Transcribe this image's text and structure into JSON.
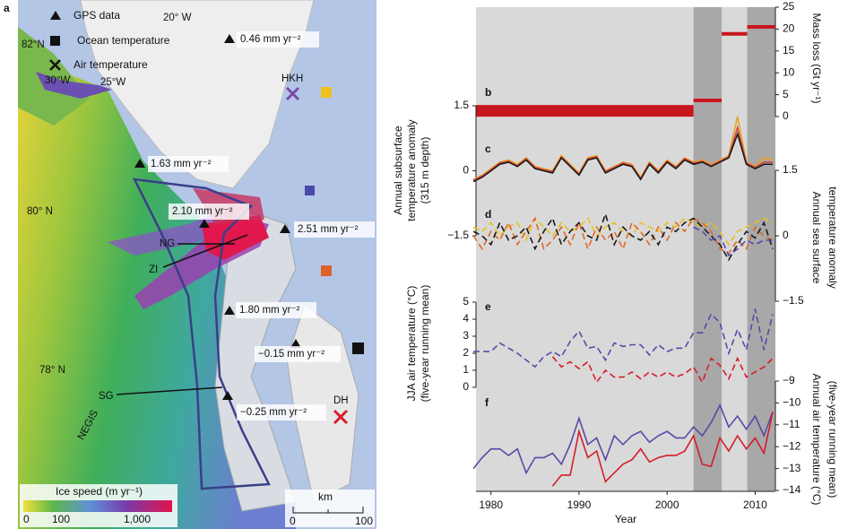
{
  "map": {
    "panel_label": "a",
    "legend": [
      "GPS data",
      "Ocean temperature",
      "Air temperature"
    ],
    "labels": [
      "82°N",
      "30°W",
      "25°W",
      "20° W",
      "0.46 mm yr⁻²",
      "HKH",
      "1.63 mm yr⁻²",
      "80° N",
      "2.10 mm yr⁻²",
      "2.51 mm yr⁻²",
      "NG",
      "ZI",
      "1.80 mm yr⁻²",
      "−0.15 mm yr⁻²",
      "78° N",
      "SG",
      "−0.25 mm yr⁻²",
      "NEGIS",
      "DH"
    ],
    "colorbar": {
      "title": "Ice speed (m yr⁻¹)",
      "ticks": [
        "0",
        "100",
        "1,000"
      ]
    },
    "scale_bar": {
      "unit": "km",
      "ticks": [
        "0",
        "100"
      ]
    }
  },
  "chart_data": [
    {
      "type": "segment",
      "label": "b",
      "ylabel": [
        "Mass loss (Gt yr⁻¹)"
      ],
      "y_axis_side": "right",
      "ylim": [
        0,
        25
      ],
      "yticks": [
        0,
        5,
        10,
        15,
        20,
        25
      ],
      "color": "#c8161e",
      "segments": [
        {
          "x": [
            1978.3,
            2003.0
          ],
          "value": 1.3
        },
        {
          "x": [
            2003.0,
            2006.2
          ],
          "value": 3.7
        },
        {
          "x": [
            2006.2,
            2009.1
          ],
          "value": 18.9
        },
        {
          "x": [
            2009.1,
            2012.3
          ],
          "value": 20.5
        }
      ]
    },
    {
      "type": "line",
      "label": "c",
      "ylabel": [
        "Annual subsurface",
        "temperature anomaly",
        "(315 m depth)"
      ],
      "y_axis_side": "left",
      "ylim": [
        -1.5,
        1.5
      ],
      "yticks": [
        1.5,
        0,
        {
          "value": -1.5,
          "label": "−1.5"
        }
      ],
      "dashed": false,
      "x": [
        1978,
        1979,
        1980,
        1981,
        1982,
        1983,
        1984,
        1985,
        1986,
        1987,
        1988,
        1989,
        1990,
        1991,
        1992,
        1993,
        1994,
        1995,
        1996,
        1997,
        1998,
        1999,
        2000,
        2001,
        2002,
        2003,
        2004,
        2005,
        2006,
        2007,
        2008,
        2009,
        2010,
        2011,
        2012
      ],
      "series": [
        {
          "color": "#e8a22a",
          "values": [
            -0.2,
            -0.1,
            0.05,
            0.2,
            0.25,
            0.15,
            0.3,
            0.1,
            0.05,
            0.0,
            0.35,
            0.15,
            -0.05,
            0.3,
            0.35,
            0.0,
            0.1,
            0.2,
            0.15,
            -0.15,
            0.2,
            0.0,
            0.25,
            0.1,
            0.3,
            0.2,
            0.25,
            0.15,
            0.25,
            0.35,
            1.25,
            0.2,
            0.1,
            0.3,
            0.25
          ]
        },
        {
          "color": "#d2453a",
          "values": [
            -0.22,
            -0.12,
            0.02,
            0.18,
            0.22,
            0.12,
            0.28,
            0.08,
            0.02,
            -0.02,
            0.32,
            0.12,
            -0.08,
            0.28,
            0.32,
            -0.02,
            0.08,
            0.18,
            0.12,
            -0.18,
            0.18,
            -0.02,
            0.22,
            0.08,
            0.28,
            0.18,
            0.22,
            0.12,
            0.22,
            0.32,
            1.0,
            0.18,
            0.08,
            0.2,
            0.2
          ]
        },
        {
          "color": "#1a1a1a",
          "values": [
            -0.25,
            -0.15,
            0.0,
            0.15,
            0.2,
            0.1,
            0.25,
            0.05,
            0.0,
            -0.05,
            0.3,
            0.1,
            -0.1,
            0.25,
            0.3,
            -0.05,
            0.05,
            0.15,
            0.1,
            -0.2,
            0.15,
            -0.05,
            0.2,
            0.05,
            0.25,
            0.15,
            0.2,
            0.1,
            0.2,
            0.3,
            0.85,
            0.15,
            0.05,
            0.15,
            0.15
          ]
        }
      ]
    },
    {
      "type": "line",
      "label": "d",
      "ylabel": [
        "Annual sea surface",
        "temperature anomaly"
      ],
      "y_axis_side": "right",
      "ylim": [
        -1.5,
        1.5
      ],
      "yticks": [
        1.5,
        0,
        {
          "value": -1.5,
          "label": "−1.5"
        }
      ],
      "dashed": true,
      "x": [
        1978,
        1979,
        1980,
        1981,
        1982,
        1983,
        1984,
        1985,
        1986,
        1987,
        1988,
        1989,
        1990,
        1991,
        1992,
        1993,
        1994,
        1995,
        1996,
        1997,
        1998,
        1999,
        2000,
        2001,
        2002,
        2003,
        2004,
        2005,
        2006,
        2007,
        2008,
        2009,
        2010,
        2011,
        2012
      ],
      "series": [
        {
          "color": "#e8c020",
          "values": [
            0.2,
            0.1,
            0.3,
            0.0,
            0.2,
            0.3,
            -0.1,
            0.4,
            0.2,
            0.0,
            0.3,
            0.1,
            0.2,
            0.4,
            0.0,
            0.2,
            0.3,
            0.1,
            0.0,
            0.3,
            0.2,
            0.1,
            0.3,
            0.2,
            0.4,
            0.3,
            0.2,
            0.3,
            0.1,
            -0.2,
            0.1,
            0.2,
            0.3,
            0.4,
            0.3
          ]
        },
        {
          "color": "#e06a2a",
          "values": [
            0.0,
            -0.3,
            0.1,
            -0.1,
            0.3,
            -0.2,
            0.1,
            0.4,
            -0.3,
            -0.1,
            0.2,
            -0.2,
            0.3,
            -0.3,
            0.2,
            -0.1,
            0.1,
            -0.3,
            0.3,
            0.1,
            -0.2,
            0.2,
            -0.1,
            0.3,
            0.1,
            0.4,
            0.3,
            0.1,
            -0.3,
            -0.4,
            -0.1,
            -0.3,
            0.2,
            0.0,
            -0.1
          ]
        },
        {
          "color": "#1a1a1a",
          "values": [
            0.1,
            0.0,
            -0.2,
            0.3,
            -0.1,
            0.0,
            0.2,
            -0.3,
            0.1,
            0.4,
            -0.2,
            0.1,
            0.3,
            0.0,
            -0.1,
            0.5,
            -0.2,
            0.2,
            0.0,
            -0.1,
            0.1,
            -0.2,
            0.2,
            0.1,
            0.3,
            0.4,
            0.2,
            0.0,
            -0.2,
            -0.55,
            -0.2,
            0.1,
            -0.05,
            0.3,
            -0.3
          ]
        },
        {
          "color": "#5a48a8",
          "values": [
            null,
            null,
            null,
            null,
            null,
            null,
            null,
            null,
            null,
            null,
            null,
            null,
            null,
            null,
            null,
            null,
            null,
            null,
            null,
            null,
            null,
            null,
            null,
            null,
            null,
            0.2,
            0.1,
            -0.1,
            0.0,
            -0.45,
            -0.3,
            -0.1,
            -0.2,
            -0.1,
            -0.1
          ]
        }
      ]
    },
    {
      "type": "line",
      "label": "e",
      "ylabel": [
        "JJA air temperature (°C)",
        "(five-year running mean)"
      ],
      "y_axis_side": "left",
      "ylim": [
        0,
        5
      ],
      "yticks": [
        0,
        1,
        2,
        3,
        4,
        5
      ],
      "dashed": true,
      "x": [
        1978,
        1979,
        1980,
        1981,
        1982,
        1983,
        1984,
        1985,
        1986,
        1987,
        1988,
        1989,
        1990,
        1991,
        1992,
        1993,
        1994,
        1995,
        1996,
        1997,
        1998,
        1999,
        2000,
        2001,
        2002,
        2003,
        2004,
        2005,
        2006,
        2007,
        2008,
        2009,
        2010,
        2011,
        2012
      ],
      "series": [
        {
          "color": "#5a48a8",
          "values": [
            2.1,
            2.1,
            2.1,
            2.6,
            2.3,
            2.0,
            1.6,
            1.2,
            1.8,
            2.1,
            1.8,
            2.7,
            3.3,
            2.3,
            2.4,
            1.6,
            2.6,
            2.4,
            2.5,
            2.5,
            1.9,
            2.5,
            2.1,
            2.3,
            2.3,
            3.2,
            3.2,
            4.3,
            3.8,
            2.0,
            3.4,
            2.2,
            4.6,
            2.2,
            4.3
          ]
        },
        {
          "color": "#d41e2a",
          "values": [
            null,
            null,
            null,
            null,
            null,
            null,
            null,
            null,
            null,
            1.8,
            1.2,
            1.5,
            1.1,
            1.5,
            0.3,
            1.0,
            0.6,
            0.6,
            0.9,
            0.5,
            0.9,
            0.6,
            0.9,
            0.6,
            0.8,
            1.2,
            0.3,
            1.7,
            1.3,
            0.5,
            1.7,
            0.6,
            0.9,
            1.2,
            1.7
          ]
        }
      ]
    },
    {
      "type": "line",
      "label": "f",
      "ylabel": [
        "Annual air temperature (°C)",
        "(five-year running mean)"
      ],
      "y_axis_side": "right",
      "ylim": [
        -14,
        -9
      ],
      "yticks": [
        {
          "value": -9,
          "label": "−9"
        },
        {
          "value": -10,
          "label": "−10"
        },
        {
          "value": -11,
          "label": "−11"
        },
        {
          "value": -12,
          "label": "−12"
        },
        {
          "value": -13,
          "label": "−13"
        },
        {
          "value": -14,
          "label": "−14"
        }
      ],
      "dashed": false,
      "xlabel": "Year",
      "xlim": [
        1978.3,
        2012.3
      ],
      "xticks": [
        1980,
        1990,
        2000,
        2010
      ],
      "shaded_periods": [
        [
          2003.0,
          2006.2
        ],
        [
          2009.1,
          2012.3
        ]
      ],
      "x": [
        1978,
        1979,
        1980,
        1981,
        1982,
        1983,
        1984,
        1985,
        1986,
        1987,
        1988,
        1989,
        1990,
        1991,
        1992,
        1993,
        1994,
        1995,
        1996,
        1997,
        1998,
        1999,
        2000,
        2001,
        2002,
        2003,
        2004,
        2005,
        2006,
        2007,
        2008,
        2009,
        2010,
        2011,
        2012
      ],
      "series": [
        {
          "color": "#5a48a8",
          "values": [
            -13,
            -12.5,
            -12.1,
            -12.1,
            -12.4,
            -12.1,
            -13.2,
            -12.5,
            -12.5,
            -12.3,
            -12.8,
            -11.9,
            -10.7,
            -11.9,
            -11.6,
            -12.6,
            -11.5,
            -11.9,
            -11.5,
            -11.3,
            -11.8,
            -11.5,
            -11.3,
            -11.6,
            -11.6,
            -11.1,
            -11.5,
            -10.9,
            -10.1,
            -11.1,
            -10.6,
            -11.2,
            -10.6,
            -11.5,
            -10.4
          ]
        },
        {
          "color": "#d41e2a",
          "values": [
            null,
            null,
            null,
            null,
            null,
            null,
            null,
            null,
            null,
            -13.8,
            -13.3,
            -13.3,
            -11.3,
            -12.5,
            -12.2,
            -13.6,
            -13.2,
            -12.8,
            -12.6,
            -12.1,
            -12.7,
            -12.5,
            -12.4,
            -12.4,
            -12.2,
            -11.5,
            -12.8,
            -12.9,
            -11.6,
            -12.2,
            -11.5,
            -12.1,
            -11.6,
            -12.3,
            -10.4
          ]
        }
      ]
    }
  ]
}
